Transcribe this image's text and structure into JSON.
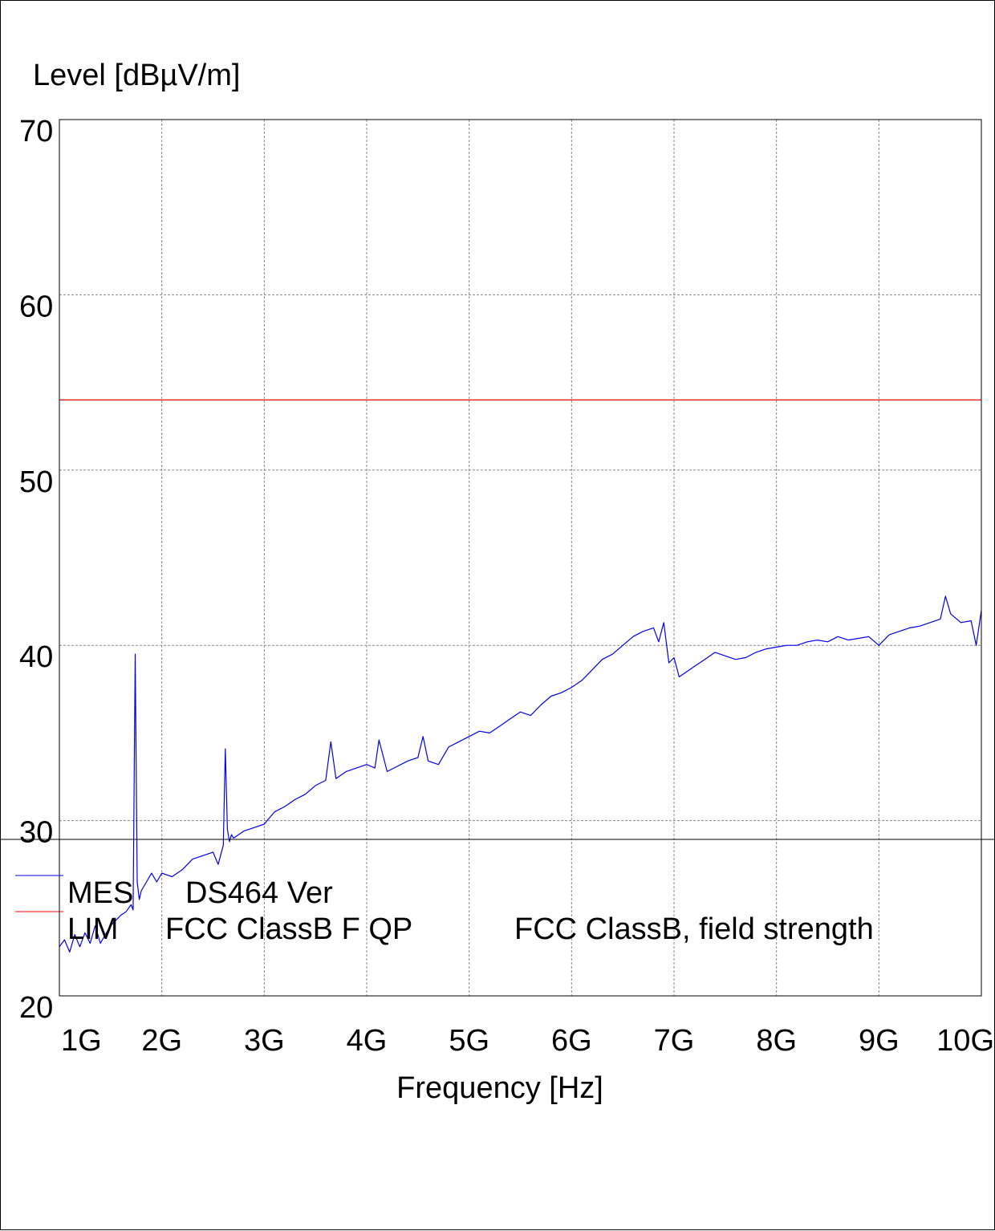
{
  "chart_data": {
    "type": "line",
    "ylabel": "Level [dBµV/m]",
    "xlabel": "Frequency [Hz]",
    "ylim": [
      20,
      70
    ],
    "xlim": [
      1000000000,
      10000000000
    ],
    "x_scale": "linear",
    "grid": true,
    "y_ticks": [
      "20",
      "30",
      "40",
      "50",
      "60",
      "70"
    ],
    "x_ticks": [
      {
        "value": 1000000000,
        "label": "1G"
      },
      {
        "value": 2000000000,
        "label": "2G"
      },
      {
        "value": 3000000000,
        "label": "3G"
      },
      {
        "value": 4000000000,
        "label": "4G"
      },
      {
        "value": 5000000000,
        "label": "5G"
      },
      {
        "value": 6000000000,
        "label": "6G"
      },
      {
        "value": 7000000000,
        "label": "7G"
      },
      {
        "value": 8000000000,
        "label": "8G"
      },
      {
        "value": 9000000000,
        "label": "9G"
      },
      {
        "value": 10000000000,
        "label": "10G"
      }
    ],
    "series": [
      {
        "name": "MES",
        "color": "#0000ee",
        "x": [
          1000000000,
          1050000000,
          1100000000,
          1150000000,
          1200000000,
          1250000000,
          1300000000,
          1350000000,
          1400000000,
          1450000000,
          1500000000,
          1550000000,
          1600000000,
          1650000000,
          1700000000,
          1720000000,
          1740000000,
          1760000000,
          1780000000,
          1800000000,
          1850000000,
          1900000000,
          1950000000,
          2000000000,
          2100000000,
          2200000000,
          2300000000,
          2400000000,
          2500000000,
          2550000000,
          2600000000,
          2620000000,
          2640000000,
          2660000000,
          2680000000,
          2700000000,
          2800000000,
          2900000000,
          3000000000,
          3100000000,
          3200000000,
          3300000000,
          3400000000,
          3500000000,
          3600000000,
          3650000000,
          3700000000,
          3800000000,
          3900000000,
          4000000000,
          4080000000,
          4120000000,
          4200000000,
          4300000000,
          4400000000,
          4500000000,
          4550000000,
          4600000000,
          4700000000,
          4800000000,
          4900000000,
          5000000000,
          5100000000,
          5200000000,
          5300000000,
          5400000000,
          5500000000,
          5600000000,
          5700000000,
          5800000000,
          5900000000,
          6000000000,
          6100000000,
          6200000000,
          6300000000,
          6400000000,
          6500000000,
          6600000000,
          6700000000,
          6800000000,
          6850000000,
          6900000000,
          6950000000,
          7000000000,
          7050000000,
          7100000000,
          7200000000,
          7300000000,
          7400000000,
          7500000000,
          7600000000,
          7700000000,
          7800000000,
          7900000000,
          8000000000,
          8100000000,
          8200000000,
          8300000000,
          8400000000,
          8500000000,
          8600000000,
          8700000000,
          8800000000,
          8900000000,
          9000000000,
          9100000000,
          9200000000,
          9300000000,
          9400000000,
          9500000000,
          9600000000,
          9650000000,
          9700000000,
          9800000000,
          9900000000,
          9950000000,
          10000000000
        ],
        "y": [
          22.8,
          23.2,
          22.5,
          23.5,
          22.8,
          23.6,
          23.0,
          24.0,
          23.0,
          23.5,
          24.0,
          24.3,
          24.6,
          24.8,
          25.2,
          24.9,
          39.5,
          26.5,
          25.5,
          26.0,
          26.5,
          27.0,
          26.5,
          27.0,
          26.8,
          27.2,
          27.8,
          28.0,
          28.2,
          27.5,
          28.6,
          34.1,
          29.5,
          28.8,
          29.2,
          29.0,
          29.4,
          29.6,
          29.8,
          30.5,
          30.8,
          31.2,
          31.5,
          32.0,
          32.3,
          34.5,
          32.4,
          32.8,
          33.0,
          33.2,
          33.0,
          34.6,
          32.8,
          33.1,
          33.4,
          33.6,
          34.8,
          33.4,
          33.2,
          34.2,
          34.5,
          34.8,
          35.1,
          35.0,
          35.4,
          35.8,
          36.2,
          36.0,
          36.6,
          37.1,
          37.3,
          37.6,
          38.0,
          38.6,
          39.2,
          39.5,
          40.0,
          40.5,
          40.8,
          41.0,
          40.2,
          41.3,
          39.0,
          39.3,
          38.2,
          38.4,
          38.8,
          39.2,
          39.6,
          39.4,
          39.2,
          39.3,
          39.6,
          39.8,
          39.9,
          40.0,
          40.0,
          40.2,
          40.3,
          40.2,
          40.5,
          40.3,
          40.4,
          40.5,
          40.0,
          40.6,
          40.8,
          41.0,
          41.1,
          41.3,
          41.5,
          42.8,
          41.8,
          41.3,
          41.4,
          40.0,
          42.0
        ]
      },
      {
        "name": "LIM",
        "color": "#ee0000",
        "x": [
          1000000000,
          10000000000
        ],
        "y": [
          54.0,
          54.0
        ]
      }
    ]
  },
  "legend": [
    {
      "code": "MES",
      "description": "DS464 Ver",
      "note": "",
      "color": "#0000ee"
    },
    {
      "code": "LIM",
      "description": "FCC ClassB F QP",
      "note": "FCC ClassB, field strength",
      "color": "#ee0000"
    }
  ]
}
